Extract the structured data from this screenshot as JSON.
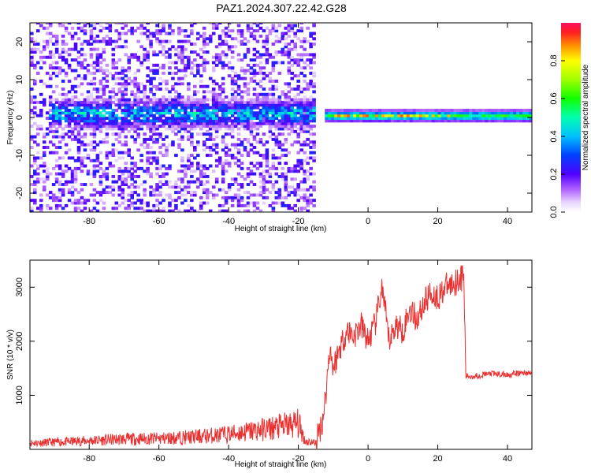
{
  "title": "PAZ1.2024.307.22.42.G28",
  "chart_data": [
    {
      "type": "heatmap",
      "xlabel": "Height of straight line (km)",
      "ylabel": "Frequency (Hz)",
      "xlim": [
        -97,
        47
      ],
      "ylim": [
        -25,
        25
      ],
      "x_ticks": [
        -80,
        -60,
        -40,
        -20,
        0,
        20,
        40
      ],
      "y_ticks": [
        -20,
        -10,
        0,
        10,
        20
      ],
      "colorbar": {
        "label": "Normalized spectral amplitude",
        "range": [
          0,
          1
        ],
        "ticks": [
          0.0,
          0.2,
          0.4,
          0.6,
          0.8
        ],
        "tick_labels": [
          "0.0",
          "0.2",
          "0.4",
          "0.6",
          "0.8"
        ]
      },
      "features": [
        {
          "x_range": [
            -97,
            -15
          ],
          "freq_center": 0,
          "freq_spread": 8,
          "amplitude": 0.2,
          "note": "broad scattered low-amplitude noise"
        },
        {
          "x_range": [
            -92,
            -15
          ],
          "freq_center": 1,
          "freq_spread": 3,
          "amplitude": 0.35,
          "note": "dense purple-blue band"
        },
        {
          "x_range": [
            -12,
            47
          ],
          "freq_center": 0.5,
          "freq_spread": 1.2,
          "amplitude": 0.55,
          "note": "narrow green band"
        },
        {
          "x_range": [
            -10,
            30
          ],
          "freq_center": 0.5,
          "freq_spread": 0.4,
          "amplitude": 0.85,
          "note": "red peaks along band"
        }
      ]
    },
    {
      "type": "line",
      "xlabel": "Height of straight line (km)",
      "ylabel": "SNR (10 * v/v)",
      "xlim": [
        -97,
        47
      ],
      "ylim": [
        0,
        3500
      ],
      "x_ticks": [
        -80,
        -60,
        -40,
        -20,
        0,
        20,
        40
      ],
      "y_ticks": [
        1000,
        2000,
        3000
      ],
      "series": [
        {
          "color": "#e83030",
          "x": [
            -97,
            -90,
            -80,
            -70,
            -60,
            -50,
            -40,
            -30,
            -25,
            -20,
            -18,
            -15,
            -13,
            -12,
            -11,
            -10,
            -8,
            -6,
            -4,
            -2,
            0,
            2,
            4,
            6,
            8,
            10,
            12,
            14,
            16,
            18,
            20,
            22,
            24,
            26,
            27.5,
            28,
            30,
            35,
            40,
            45,
            47
          ],
          "y": [
            120,
            130,
            160,
            190,
            200,
            230,
            280,
            370,
            420,
            480,
            150,
            120,
            550,
            1100,
            1900,
            1500,
            1900,
            2200,
            2100,
            2300,
            2000,
            2300,
            3000,
            2000,
            2300,
            2200,
            2600,
            2400,
            2700,
            2900,
            2800,
            3000,
            3050,
            3150,
            3200,
            1350,
            1350,
            1400,
            1380,
            1420,
            1400
          ]
        }
      ]
    }
  ]
}
